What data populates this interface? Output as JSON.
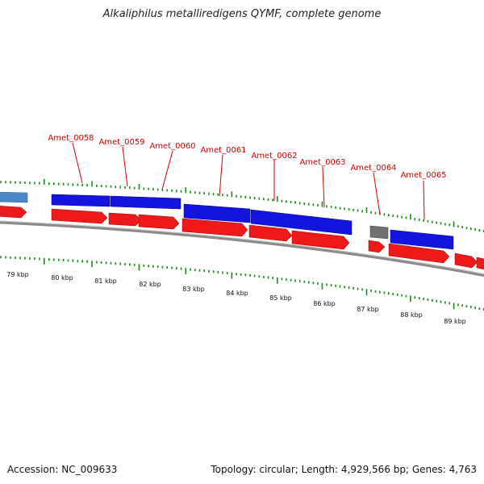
{
  "title": "Alkaliphilus metalliredigens QYMF, complete genome",
  "footer": {
    "accession": "Accession: NC_009633",
    "summary": "Topology: circular; Length: 4,929,566 bp; Genes: 4,763"
  },
  "colors": {
    "forward_cds": "#1414e0",
    "reverse_cds": "#ee1a1a",
    "other_feature": "#6f6f6f",
    "partial_forward": "#4a86c8",
    "gene_label": "#d00000",
    "tick": "#1a8a1a",
    "backbone": "#777777"
  },
  "kbp_labels": [
    "79 kbp",
    "80 kbp",
    "81 kbp",
    "82 kbp",
    "83 kbp",
    "84 kbp",
    "85 kbp",
    "86 kbp",
    "87 kbp",
    "88 kbp",
    "89 kbp"
  ],
  "gene_labels": [
    "Amet_0058",
    "Amet_0059",
    "Amet_0060",
    "Amet_0061",
    "Amet_0062",
    "Amet_0063",
    "Amet_0064",
    "Amet_0065"
  ]
}
